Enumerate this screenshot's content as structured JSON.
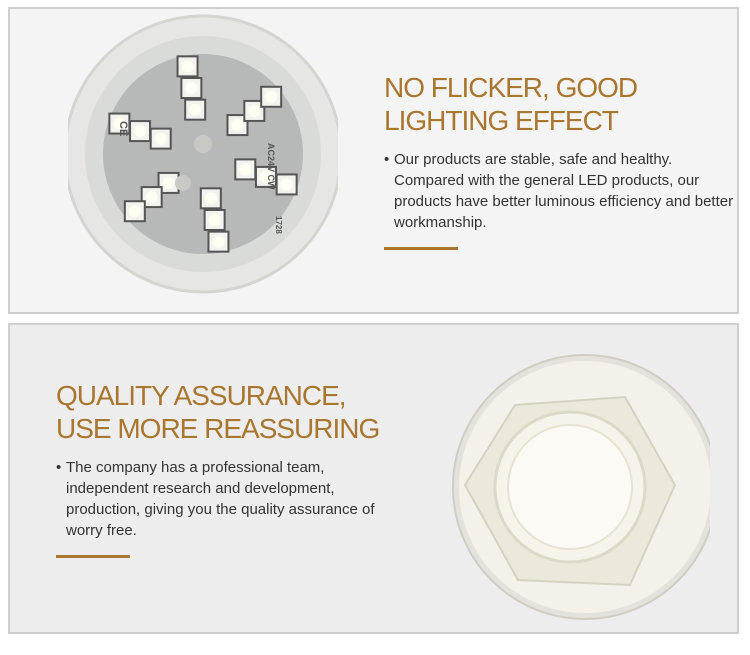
{
  "sections": [
    {
      "title": "NO FLICKER, GOOD LIGHTING EFFECT",
      "body": "Our products are stable, safe and healthy. Compared with the general LED products, our products have better luminous efficiency and better workmanship.",
      "image": "led-bulb-front"
    },
    {
      "title": "QUALITY ASSURANCE, USE MORE REASSURING",
      "body": "The company has a professional team, independent research and development, production, giving you the quality assurance of worry free.",
      "image": "bulb-base-hex"
    }
  ],
  "product_markings": [
    "CE",
    "AC24V CW",
    "1728"
  ],
  "colors": {
    "accent": "#a8762f",
    "text": "#333333",
    "panel_border": "#cfcfcf"
  }
}
